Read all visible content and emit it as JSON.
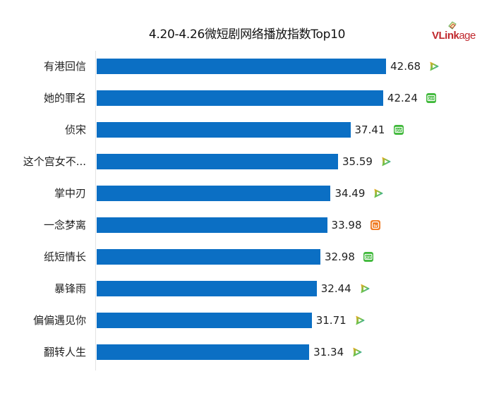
{
  "header": {
    "title": "4.20-4.26微短剧网络播放指数Top10",
    "logo_bold": "VLink",
    "logo_light": "age"
  },
  "colors": {
    "bar": "#0b6fc4",
    "logo_red": "#c0282d",
    "iqiyi_green": "#3fb83a",
    "mango_orange": "#f07a22"
  },
  "rows": [
    {
      "label": "有港回信",
      "value": "42.68",
      "platform": "tencent-video"
    },
    {
      "label": "她的罪名",
      "value": "42.24",
      "platform": "iqiyi"
    },
    {
      "label": "侦宋",
      "value": "37.41",
      "platform": "iqiyi"
    },
    {
      "label": "这个宫女不...",
      "value": "35.59",
      "platform": "tencent-video"
    },
    {
      "label": "掌中刃",
      "value": "34.49",
      "platform": "tencent-video"
    },
    {
      "label": "一念梦离",
      "value": "33.98",
      "platform": "mango-tv"
    },
    {
      "label": "纸短情长",
      "value": "32.98",
      "platform": "iqiyi"
    },
    {
      "label": "暴锋雨",
      "value": "32.44",
      "platform": "tencent-video"
    },
    {
      "label": "偏偏遇见你",
      "value": "31.71",
      "platform": "tencent-video"
    },
    {
      "label": "翻转人生",
      "value": "31.34",
      "platform": "tencent-video"
    }
  ],
  "chart_data": {
    "type": "bar",
    "orientation": "horizontal",
    "title": "4.20-4.26微短剧网络播放指数Top10",
    "xlabel": "",
    "ylabel": "",
    "categories": [
      "有港回信",
      "她的罪名",
      "侦宋",
      "这个宫女不...",
      "掌中刃",
      "一念梦离",
      "纸短情长",
      "暴锋雨",
      "偏偏遇见你",
      "翻转人生"
    ],
    "values": [
      42.68,
      42.24,
      37.41,
      35.59,
      34.49,
      33.98,
      32.98,
      32.44,
      31.71,
      31.34
    ],
    "platforms": [
      "腾讯视频",
      "爱奇艺",
      "爱奇艺",
      "腾讯视频",
      "腾讯视频",
      "芒果TV",
      "爱奇艺",
      "腾讯视频",
      "腾讯视频",
      "腾讯视频"
    ],
    "data_labels": true,
    "grid": false,
    "legend": null,
    "xlim": [
      0,
      45
    ]
  }
}
